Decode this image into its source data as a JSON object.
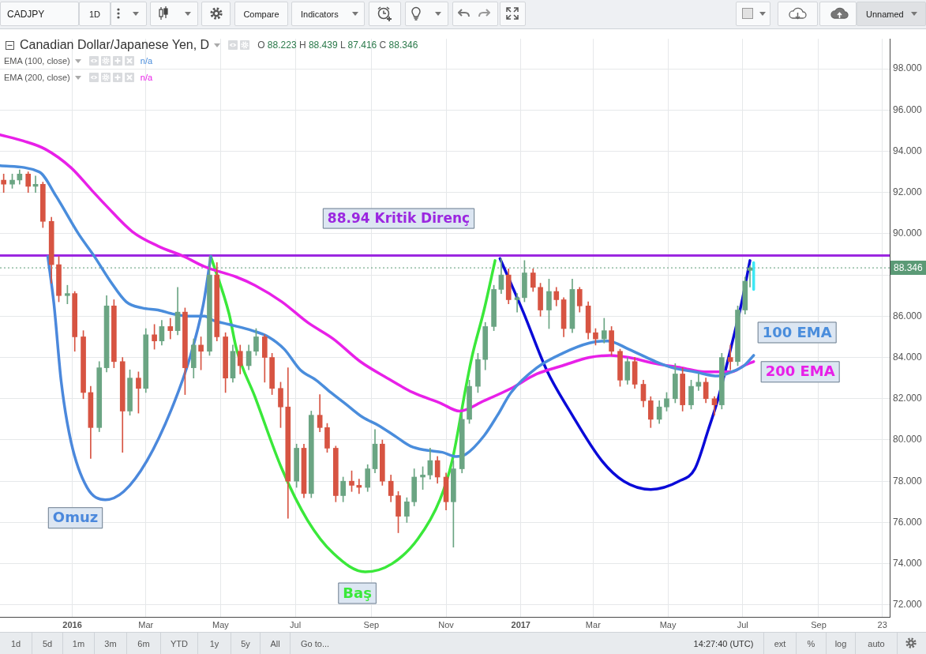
{
  "chart_data": {
    "type": "candlestick",
    "title": "Canadian Dollar/Japanese Yen, D",
    "annotations": [
      "O 88.223 H 88.439 L 87.416 C 88.346",
      "EMA (100, close)",
      "n/a",
      "EMA (200, close)",
      "n/a",
      "CADJPY",
      "1D",
      "Compare",
      "Indicators",
      "Unnamed",
      "1d",
      "5d",
      "1m",
      "3m",
      "6m",
      "YTD",
      "1y",
      "5y",
      "All",
      "Go to...",
      "14:27:40 (UTC)",
      "ext",
      "%",
      "log",
      "auto"
    ],
    "xlim": [
      "2015-11-03",
      "2017-10-29"
    ],
    "xticks": [
      {
        "value": "2016-01-01",
        "label": "2016"
      },
      {
        "value": "2016-03-01",
        "label": "Mar"
      },
      {
        "value": "2016-05-01",
        "label": "May"
      },
      {
        "value": "2016-07-01",
        "label": "Jul"
      },
      {
        "value": "2016-09-01",
        "label": "Sep"
      },
      {
        "value": "2016-11-01",
        "label": "Nov"
      },
      {
        "value": "2017-01-01",
        "label": "2017"
      },
      {
        "value": "2017-03-01",
        "label": "Mar"
      },
      {
        "value": "2017-05-01",
        "label": "May"
      },
      {
        "value": "2017-07-01",
        "label": "Jul"
      },
      {
        "value": "2017-09-01",
        "label": "Sep"
      },
      {
        "value": "2017-10-23",
        "label": "23"
      }
    ],
    "ylim": [
      71.42,
      99.45
    ],
    "yticks": [
      {
        "value": 72,
        "label": "72.000"
      },
      {
        "value": 74,
        "label": "74.000"
      },
      {
        "value": 76,
        "label": "76.000"
      },
      {
        "value": 78,
        "label": "78.000"
      },
      {
        "value": 80,
        "label": "80.000"
      },
      {
        "value": 82,
        "label": "82.000"
      },
      {
        "value": 84,
        "label": "84.000"
      },
      {
        "value": 86,
        "label": "86.000"
      },
      {
        "value": 88,
        "label": null
      },
      {
        "value": 90,
        "label": "90.000"
      },
      {
        "value": 92,
        "label": "92.000"
      },
      {
        "value": 94,
        "label": "94.000"
      },
      {
        "value": 96,
        "label": "96.000"
      },
      {
        "value": 98,
        "label": "98.000"
      }
    ],
    "grid": true,
    "marker": "none",
    "series": [
      {
        "x": [
          "2015-11-06",
          "2015-11-13",
          "2015-11-19",
          "2015-11-26",
          "2015-12-02",
          "2015-12-08",
          "2015-12-15",
          "2015-12-21",
          "2015-12-28",
          "2016-01-03",
          "2016-01-10",
          "2016-01-16",
          "2016-01-23",
          "2016-01-29",
          "2016-02-04",
          "2016-02-11",
          "2016-02-17",
          "2016-02-24",
          "2016-03-01",
          "2016-03-08",
          "2016-03-14",
          "2016-03-21",
          "2016-03-27",
          "2016-04-02",
          "2016-04-09",
          "2016-04-15",
          "2016-04-22",
          "2016-04-28",
          "2016-05-05",
          "2016-05-11",
          "2016-05-17",
          "2016-05-24",
          "2016-05-30",
          "2016-06-06",
          "2016-06-12",
          "2016-06-19",
          "2016-06-25",
          "2016-07-02",
          "2016-07-08",
          "2016-07-14",
          "2016-07-21",
          "2016-07-27",
          "2016-08-03",
          "2016-08-09",
          "2016-08-16",
          "2016-08-22",
          "2016-08-29",
          "2016-09-04",
          "2016-09-10",
          "2016-09-17",
          "2016-09-23",
          "2016-09-30",
          "2016-10-06",
          "2016-10-13",
          "2016-10-19",
          "2016-10-25",
          "2016-11-01",
          "2016-11-07",
          "2016-11-14",
          "2016-11-20",
          "2016-11-27",
          "2016-12-03",
          "2016-12-10",
          "2016-12-16",
          "2016-12-22",
          "2016-12-29",
          "2017-01-04",
          "2017-01-11",
          "2017-01-17",
          "2017-01-24",
          "2017-01-30",
          "2017-02-05",
          "2017-02-12",
          "2017-02-18",
          "2017-02-25",
          "2017-03-03",
          "2017-03-10",
          "2017-03-16",
          "2017-03-23",
          "2017-03-29",
          "2017-04-04",
          "2017-04-11",
          "2017-04-17",
          "2017-04-24",
          "2017-04-30",
          "2017-05-07",
          "2017-05-13",
          "2017-05-20",
          "2017-05-26",
          "2017-06-01",
          "2017-06-08",
          "2017-06-14",
          "2017-06-21",
          "2017-06-27",
          "2017-07-03",
          "2017-07-07"
        ],
        "ohlc": [
          [
            92.6,
            92.9,
            92.0,
            92.4
          ],
          [
            92.4,
            92.9,
            92.2,
            92.6
          ],
          [
            92.6,
            93.1,
            92.4,
            92.9
          ],
          [
            92.9,
            93.0,
            92.0,
            92.3
          ],
          [
            92.3,
            92.8,
            92.0,
            92.4
          ],
          [
            92.4,
            92.5,
            90.3,
            90.6
          ],
          [
            90.6,
            90.8,
            87.6,
            88.5
          ],
          [
            88.5,
            88.9,
            86.7,
            87.0
          ],
          [
            87.0,
            87.5,
            86.6,
            87.1
          ],
          [
            87.1,
            87.2,
            84.3,
            85.0
          ],
          [
            85.0,
            85.3,
            82.0,
            82.3
          ],
          [
            82.3,
            82.6,
            79.1,
            80.6
          ],
          [
            80.6,
            83.8,
            80.4,
            83.5
          ],
          [
            83.5,
            87.0,
            83.3,
            86.5
          ],
          [
            86.5,
            86.8,
            83.5,
            83.8
          ],
          [
            83.8,
            84.0,
            79.4,
            81.4
          ],
          [
            81.4,
            83.4,
            81.2,
            83.0
          ],
          [
            83.0,
            83.3,
            81.3,
            82.5
          ],
          [
            82.5,
            85.4,
            82.3,
            85.1
          ],
          [
            85.1,
            85.6,
            84.4,
            84.8
          ],
          [
            84.8,
            85.8,
            84.6,
            85.5
          ],
          [
            85.5,
            85.9,
            84.9,
            85.3
          ],
          [
            85.3,
            87.4,
            85.1,
            86.2
          ],
          [
            86.2,
            86.4,
            82.2,
            83.5
          ],
          [
            83.5,
            84.9,
            83.0,
            84.6
          ],
          [
            84.6,
            85.0,
            83.4,
            84.3
          ],
          [
            84.3,
            88.9,
            84.1,
            88.0
          ],
          [
            88.0,
            88.6,
            84.8,
            85.0
          ],
          [
            85.0,
            85.2,
            82.3,
            83.0
          ],
          [
            83.0,
            84.6,
            82.8,
            84.3
          ],
          [
            84.3,
            84.6,
            83.2,
            83.6
          ],
          [
            83.6,
            84.6,
            83.4,
            84.3
          ],
          [
            84.3,
            85.4,
            84.1,
            85.0
          ],
          [
            85.0,
            85.1,
            82.8,
            84.0
          ],
          [
            84.0,
            84.2,
            82.2,
            82.5
          ],
          [
            82.5,
            82.8,
            80.6,
            81.6
          ],
          [
            81.6,
            83.5,
            76.2,
            78.0
          ],
          [
            78.0,
            79.8,
            77.7,
            79.6
          ],
          [
            79.6,
            79.8,
            77.2,
            77.4
          ],
          [
            77.4,
            81.4,
            77.2,
            81.2
          ],
          [
            81.2,
            82.2,
            80.4,
            80.6
          ],
          [
            80.6,
            80.8,
            79.4,
            79.6
          ],
          [
            79.6,
            79.7,
            77.0,
            77.3
          ],
          [
            77.3,
            78.2,
            77.0,
            78.0
          ],
          [
            78.0,
            78.5,
            77.5,
            77.8
          ],
          [
            77.8,
            78.1,
            77.4,
            77.7
          ],
          [
            77.7,
            78.8,
            77.5,
            78.6
          ],
          [
            78.6,
            80.5,
            78.4,
            79.8
          ],
          [
            79.8,
            80.0,
            77.8,
            78.0
          ],
          [
            78.0,
            78.3,
            77.0,
            77.3
          ],
          [
            77.3,
            77.5,
            75.5,
            76.3
          ],
          [
            76.3,
            77.2,
            76.0,
            77.0
          ],
          [
            77.0,
            78.6,
            76.8,
            78.2
          ],
          [
            78.2,
            78.7,
            77.6,
            78.3
          ],
          [
            78.3,
            79.6,
            78.1,
            79.0
          ],
          [
            79.0,
            79.2,
            77.9,
            78.2
          ],
          [
            78.2,
            78.4,
            76.6,
            77.0
          ],
          [
            77.0,
            79.0,
            74.8,
            78.6
          ],
          [
            78.6,
            81.3,
            78.4,
            81.0
          ],
          [
            81.0,
            82.9,
            80.8,
            82.6
          ],
          [
            82.6,
            84.2,
            82.3,
            83.9
          ],
          [
            83.9,
            85.7,
            83.4,
            85.5
          ],
          [
            85.5,
            87.5,
            85.3,
            87.3
          ],
          [
            87.3,
            88.8,
            87.1,
            88.0
          ],
          [
            88.0,
            88.3,
            86.6,
            86.8
          ],
          [
            86.8,
            87.1,
            86.2,
            86.9
          ],
          [
            86.9,
            88.7,
            86.7,
            88.1
          ],
          [
            88.1,
            88.3,
            87.2,
            87.4
          ],
          [
            87.4,
            87.6,
            86.0,
            86.3
          ],
          [
            86.3,
            87.8,
            85.4,
            87.2
          ],
          [
            87.2,
            87.4,
            86.5,
            86.8
          ],
          [
            86.8,
            86.9,
            85.0,
            85.4
          ],
          [
            85.4,
            87.8,
            85.2,
            87.3
          ],
          [
            87.3,
            87.4,
            86.2,
            86.5
          ],
          [
            86.5,
            86.7,
            84.9,
            85.2
          ],
          [
            85.2,
            85.4,
            84.6,
            84.9
          ],
          [
            84.9,
            85.9,
            84.7,
            85.3
          ],
          [
            85.3,
            85.5,
            84.1,
            84.3
          ],
          [
            84.3,
            84.4,
            82.6,
            82.9
          ],
          [
            82.9,
            84.0,
            82.7,
            83.8
          ],
          [
            83.8,
            84.0,
            82.5,
            82.7
          ],
          [
            82.7,
            82.9,
            81.6,
            81.9
          ],
          [
            81.9,
            82.1,
            80.6,
            81.0
          ],
          [
            81.0,
            81.9,
            80.8,
            81.6
          ],
          [
            81.6,
            82.3,
            81.4,
            82.0
          ],
          [
            82.0,
            83.7,
            81.8,
            83.2
          ],
          [
            83.2,
            83.5,
            81.4,
            81.7
          ],
          [
            81.7,
            82.9,
            81.5,
            82.6
          ],
          [
            82.6,
            83.2,
            82.4,
            82.8
          ],
          [
            82.8,
            83.0,
            81.8,
            82.0
          ],
          [
            82.0,
            82.1,
            81.2,
            81.7
          ],
          [
            81.7,
            84.2,
            81.5,
            84.0
          ],
          [
            84.0,
            84.6,
            83.4,
            83.8
          ],
          [
            83.8,
            86.5,
            83.6,
            86.3
          ],
          [
            86.3,
            87.9,
            86.1,
            87.7
          ],
          [
            88.223,
            88.439,
            87.416,
            88.346
          ]
        ],
        "colors": [
          "#d75442",
          "#6ba583",
          "#6ba583",
          "#d75442",
          "#6ba583",
          "#d75442",
          "#d75442",
          "#d75442",
          "#6ba583",
          "#d75442",
          "#d75442",
          "#d75442",
          "#6ba583",
          "#6ba583",
          "#d75442",
          "#d75442",
          "#6ba583",
          "#d75442",
          "#6ba583",
          "#d75442",
          "#6ba583",
          "#d75442",
          "#6ba583",
          "#d75442",
          "#6ba583",
          "#d75442",
          "#6ba583",
          "#d75442",
          "#d75442",
          "#6ba583",
          "#d75442",
          "#6ba583",
          "#6ba583",
          "#d75442",
          "#d75442",
          "#d75442",
          "#d75442",
          "#6ba583",
          "#d75442",
          "#6ba583",
          "#d75442",
          "#d75442",
          "#d75442",
          "#6ba583",
          "#d75442",
          "#d75442",
          "#6ba583",
          "#6ba583",
          "#d75442",
          "#d75442",
          "#d75442",
          "#6ba583",
          "#6ba583",
          "#6ba583",
          "#6ba583",
          "#d75442",
          "#d75442",
          "#6ba583",
          "#6ba583",
          "#6ba583",
          "#6ba583",
          "#6ba583",
          "#6ba583",
          "#6ba583",
          "#d75442",
          "#6ba583",
          "#6ba583",
          "#d75442",
          "#d75442",
          "#6ba583",
          "#d75442",
          "#d75442",
          "#6ba583",
          "#d75442",
          "#d75442",
          "#d75442",
          "#6ba583",
          "#d75442",
          "#d75442",
          "#6ba583",
          "#d75442",
          "#d75442",
          "#d75442",
          "#6ba583",
          "#6ba583",
          "#6ba583",
          "#d75442",
          "#6ba583",
          "#6ba583",
          "#d75442",
          "#d75442",
          "#6ba583",
          "#d75442",
          "#6ba583",
          "#6ba583",
          "#6ba583"
        ]
      },
      {
        "type": "line",
        "name": "100 EMA",
        "color": "#4a8ddc",
        "x": [
          "2015-11-03",
          "2015-12-05",
          "2015-12-19",
          "2016-01-06",
          "2016-01-19",
          "2016-02-01",
          "2016-02-14",
          "2016-02-27",
          "2016-03-11",
          "2016-03-24",
          "2016-04-06",
          "2016-04-18",
          "2016-04-25",
          "2016-05-08",
          "2016-05-27",
          "2016-06-09",
          "2016-06-22",
          "2016-07-05",
          "2016-07-18",
          "2016-07-30",
          "2016-08-12",
          "2016-08-25",
          "2016-09-07",
          "2016-09-20",
          "2016-10-03",
          "2016-10-16",
          "2016-10-29",
          "2016-11-09",
          "2016-11-17",
          "2016-12-02",
          "2016-12-13",
          "2016-12-24",
          "2017-01-14",
          "2017-02-04",
          "2017-02-26",
          "2017-03-13",
          "2017-03-30",
          "2017-04-21",
          "2017-05-05",
          "2017-05-23",
          "2017-06-11",
          "2017-06-22",
          "2017-07-02",
          "2017-07-10"
        ],
        "values": [
          93.3,
          93.0,
          91.8,
          90.0,
          88.9,
          87.7,
          86.7,
          86.4,
          86.3,
          86.1,
          86.0,
          86.0,
          85.8,
          85.6,
          85.3,
          85.0,
          84.4,
          83.4,
          82.9,
          82.3,
          81.7,
          81.1,
          80.7,
          80.2,
          79.7,
          79.5,
          79.4,
          79.2,
          79.3,
          80.2,
          81.2,
          82.3,
          83.5,
          84.2,
          84.7,
          84.8,
          84.4,
          83.8,
          83.5,
          83.3,
          83.1,
          83.3,
          83.6,
          84.1
        ]
      },
      {
        "type": "line",
        "name": "200 EMA",
        "color": "#e820e8",
        "x": [
          "2015-11-03",
          "2015-11-22",
          "2015-12-10",
          "2015-12-31",
          "2016-01-17",
          "2016-01-28",
          "2016-02-19",
          "2016-03-11",
          "2016-04-01",
          "2016-04-18",
          "2016-05-14",
          "2016-05-29",
          "2016-06-20",
          "2016-07-11",
          "2016-08-01",
          "2016-08-23",
          "2016-09-14",
          "2016-10-05",
          "2016-10-27",
          "2016-11-12",
          "2016-12-02",
          "2016-12-24",
          "2017-01-14",
          "2017-02-04",
          "2017-02-26",
          "2017-03-15",
          "2017-03-30",
          "2017-04-21",
          "2017-05-12",
          "2017-05-31",
          "2017-06-11",
          "2017-06-22",
          "2017-07-02",
          "2017-07-10"
        ],
        "values": [
          94.8,
          94.5,
          94.1,
          93.2,
          92.1,
          91.4,
          90.1,
          89.4,
          88.9,
          88.4,
          87.9,
          87.5,
          86.7,
          85.7,
          84.9,
          83.8,
          83.0,
          82.3,
          81.8,
          81.4,
          81.9,
          82.5,
          83.2,
          83.6,
          84.0,
          84.1,
          84.0,
          83.7,
          83.5,
          83.3,
          83.3,
          83.3,
          83.6,
          83.8
        ]
      },
      {
        "type": "line",
        "name": "Omuz",
        "color": "#4b88dc",
        "x": [
          "2015-12-12",
          "2015-12-17",
          "2015-12-23",
          "2015-12-31",
          "2016-01-13",
          "2016-01-28",
          "2016-02-12",
          "2016-03-02",
          "2016-03-22",
          "2016-04-06",
          "2016-04-17",
          "2016-04-23"
        ],
        "values": [
          88.9,
          86.6,
          82.8,
          79.9,
          77.7,
          77.1,
          77.5,
          79.0,
          81.5,
          84.0,
          86.6,
          88.9
        ]
      },
      {
        "type": "line",
        "name": "Baş",
        "color": "#3ae83a",
        "x": [
          "2016-04-23",
          "2016-05-08",
          "2016-05-14",
          "2016-05-29",
          "2016-06-20",
          "2016-07-11",
          "2016-08-01",
          "2016-08-27",
          "2016-09-18",
          "2016-10-09",
          "2016-10-27",
          "2016-11-06",
          "2016-11-17",
          "2016-11-22",
          "2016-12-02",
          "2016-12-11"
        ],
        "values": [
          88.9,
          86.1,
          84.4,
          82.1,
          78.6,
          76.1,
          74.5,
          73.6,
          74.0,
          75.2,
          77.1,
          79.0,
          82.5,
          84.0,
          86.3,
          88.7
        ]
      },
      {
        "type": "line",
        "color": "#0a0ad8",
        "x": [
          "2016-12-15",
          "2017-01-03",
          "2017-01-22",
          "2017-02-11",
          "2017-03-08",
          "2017-03-26",
          "2017-04-17",
          "2017-05-10",
          "2017-05-23",
          "2017-06-03",
          "2017-06-11",
          "2017-06-22",
          "2017-06-30",
          "2017-07-07"
        ],
        "values": [
          88.8,
          86.2,
          83.4,
          81.3,
          79.0,
          78.0,
          77.6,
          78.0,
          78.6,
          80.5,
          82.0,
          84.6,
          86.6,
          88.7
        ]
      },
      {
        "type": "line",
        "color": "#3de8f5",
        "x": [
          "2017-07-10",
          "2017-07-10"
        ],
        "values": [
          88.6,
          87.3
        ]
      }
    ],
    "ref_lines": [
      {
        "axis": "y",
        "value": 88.94,
        "label": "88.94 Kritik Direnç",
        "color": "#9b27e0"
      },
      {
        "axis": "y",
        "value": 88.346,
        "label": "88.346",
        "color": "#5b9a76",
        "line_style": "dotted"
      }
    ]
  }
}
